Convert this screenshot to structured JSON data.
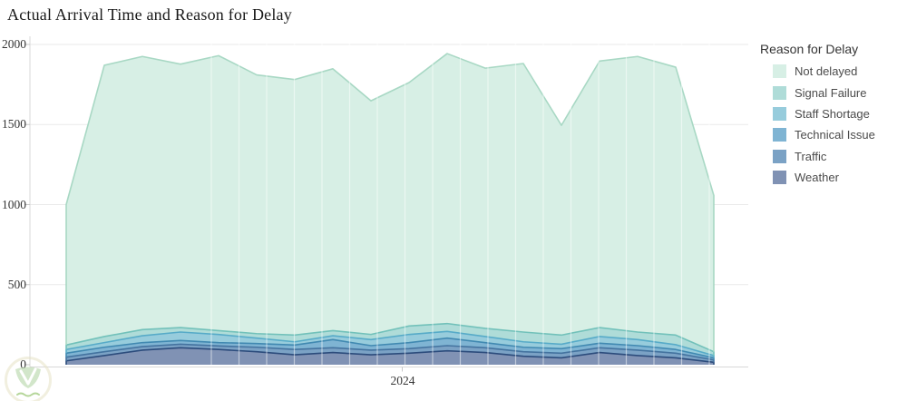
{
  "title": "Actual Arrival Time and Reason for Delay",
  "legend": {
    "title": "Reason for Delay",
    "items": [
      {
        "label": "Not delayed",
        "color": "#d7efe5"
      },
      {
        "label": "Signal Failure",
        "color": "#afdcd8"
      },
      {
        "label": "Staff Shortage",
        "color": "#97ccdc"
      },
      {
        "label": "Technical Issue",
        "color": "#7fb4d3"
      },
      {
        "label": "Traffic",
        "color": "#7ba2c5"
      },
      {
        "label": "Weather",
        "color": "#8092b4"
      }
    ]
  },
  "x_axis": {
    "tick_label": "2024"
  },
  "y_axis": {
    "tick_labels": [
      "0",
      "500",
      "1000",
      "1500",
      "2000"
    ]
  },
  "chart_data": {
    "type": "area",
    "stacked": true,
    "title": "Actual Arrival Time and Reason for Delay",
    "xlabel": "2024",
    "ylabel": "",
    "ylim": [
      0,
      2000
    ],
    "y_ticks": [
      0,
      500,
      1000,
      1500,
      2000
    ],
    "x": [
      1,
      2,
      3,
      4,
      5,
      6,
      7,
      8,
      9,
      10,
      11,
      12,
      13,
      14,
      15,
      16,
      17,
      18
    ],
    "grid": true,
    "legend_position": "right",
    "series": [
      {
        "id": "weather",
        "name": "Weather",
        "color": "#8092b4",
        "stroke": "#2c4c7c",
        "values": [
          24,
          57,
          91,
          106,
          95,
          81,
          62,
          76,
          62,
          72,
          87,
          76,
          53,
          43,
          76,
          57,
          43,
          15
        ]
      },
      {
        "id": "traffic",
        "name": "Traffic",
        "color": "#7ba2c5",
        "stroke": "#44739f",
        "values": [
          23,
          24,
          22,
          22,
          22,
          28,
          33,
          30,
          29,
          28,
          32,
          30,
          28,
          29,
          30,
          34,
          29,
          15
        ]
      },
      {
        "id": "technical-issue",
        "name": "Technical Issue",
        "color": "#7fb4d3",
        "stroke": "#4189b1",
        "values": [
          25,
          28,
          25,
          23,
          21,
          23,
          28,
          51,
          28,
          38,
          47,
          32,
          28,
          28,
          28,
          28,
          23,
          13
        ]
      },
      {
        "id": "staff-shortage",
        "name": "Staff Shortage",
        "color": "#97ccdc",
        "stroke": "#57abc8",
        "values": [
          23,
          29,
          43,
          53,
          51,
          34,
          20,
          24,
          38,
          51,
          42,
          38,
          34,
          28,
          42,
          38,
          30,
          14
        ]
      },
      {
        "id": "signal-failure",
        "name": "Signal Failure",
        "color": "#afdcd8",
        "stroke": "#72c1ba",
        "values": [
          28,
          38,
          38,
          28,
          24,
          28,
          42,
          32,
          32,
          53,
          49,
          51,
          61,
          57,
          56,
          47,
          60,
          24
        ]
      },
      {
        "id": "not-delayed",
        "name": "Not delayed",
        "color": "#d7efe5",
        "stroke": "#a8d8c4",
        "values": [
          877,
          1694,
          1706,
          1645,
          1717,
          1616,
          1596,
          1635,
          1459,
          1520,
          1686,
          1625,
          1677,
          1310,
          1664,
          1721,
          1673,
          976
        ]
      }
    ]
  },
  "colors": {
    "background": "#ffffff",
    "gridline": "#eaeaea",
    "axis_line": "#d8d8d8",
    "tick_mark": "#c8c8c8",
    "title_text": "#181818",
    "axis_text": "#363636",
    "legend_title_text": "#343434",
    "legend_item_text": "#4b4b4b",
    "vertical_gridline": "rgba(255,255,255,0.5)",
    "watermark_ring": "#e7e3c6",
    "watermark_leaf": "#aed3a0",
    "watermark_accent": "#7ab648"
  },
  "watermark": {
    "name": "leaf-logo-watermark"
  }
}
